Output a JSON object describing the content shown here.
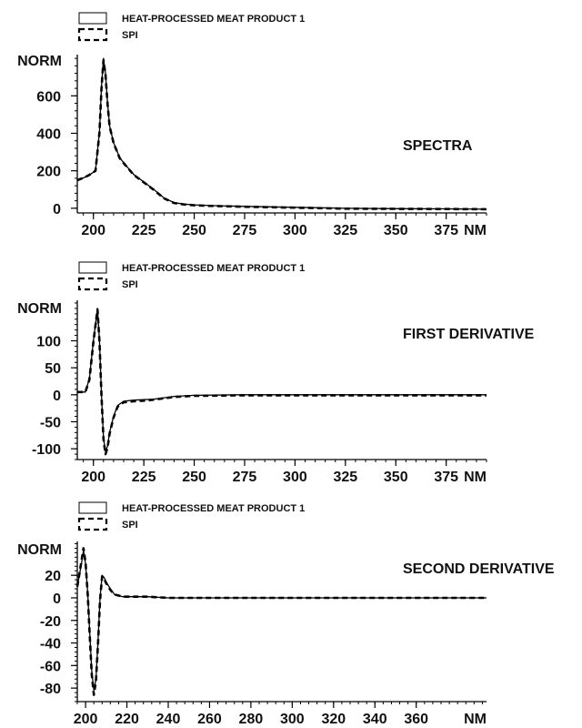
{
  "chart_data": [
    {
      "type": "line",
      "title": "SPECTRA",
      "ylabel": "NORM",
      "xunit": "NM",
      "xlim": [
        192,
        395
      ],
      "ylim": [
        -25,
        820
      ],
      "yticks": [
        0,
        200,
        400,
        600
      ],
      "xticks": [
        200,
        225,
        250,
        275,
        300,
        325,
        350,
        375
      ],
      "legend": {
        "position": "top-left",
        "entries": [
          "HEAT-PROCESSED MEAT PRODUCT 1",
          "SPI"
        ]
      },
      "series": [
        {
          "name": "HEAT-PROCESSED MEAT PRODUCT 1",
          "style": "solid",
          "x": [
            192,
            195,
            198,
            201,
            203,
            204,
            205,
            206,
            207,
            208,
            210,
            213,
            216,
            220,
            225,
            230,
            235,
            240,
            245,
            250,
            260,
            275,
            300,
            325,
            350,
            375,
            395
          ],
          "y": [
            150,
            162,
            178,
            200,
            410,
            650,
            800,
            720,
            560,
            440,
            350,
            270,
            230,
            180,
            140,
            100,
            55,
            30,
            22,
            18,
            14,
            10,
            5,
            0,
            -2,
            -3,
            -5
          ]
        },
        {
          "name": "SPI",
          "style": "dashed",
          "x": [
            192,
            195,
            198,
            201,
            203,
            204,
            205,
            206,
            207,
            208,
            210,
            213,
            216,
            220,
            225,
            230,
            235,
            240,
            245,
            250,
            260,
            275,
            300,
            325,
            350,
            375,
            395
          ],
          "y": [
            150,
            162,
            178,
            200,
            405,
            640,
            790,
            712,
            555,
            438,
            348,
            268,
            228,
            178,
            138,
            98,
            53,
            28,
            20,
            16,
            12,
            8,
            3,
            -2,
            -3,
            -4,
            -5
          ]
        }
      ]
    },
    {
      "type": "line",
      "title": "FIRST DERIVATIVE",
      "ylabel": "NORM",
      "xunit": "NM",
      "xlim": [
        192,
        395
      ],
      "ylim": [
        -120,
        175
      ],
      "yticks": [
        -100,
        -50,
        0,
        50,
        100
      ],
      "xticks": [
        200,
        225,
        250,
        275,
        300,
        325,
        350,
        375
      ],
      "legend": {
        "position": "top-left",
        "entries": [
          "HEAT-PROCESSED MEAT PRODUCT 1",
          "SPI"
        ]
      },
      "series": [
        {
          "name": "HEAT-PROCESSED MEAT PRODUCT 1",
          "style": "solid",
          "x": [
            192,
            196,
            198,
            200,
            202,
            203,
            204,
            205,
            206,
            207,
            208,
            210,
            212,
            215,
            220,
            225,
            230,
            240,
            250,
            275,
            300,
            325,
            350,
            375,
            395
          ],
          "y": [
            5,
            5,
            30,
            100,
            160,
            100,
            0,
            -80,
            -105,
            -95,
            -70,
            -40,
            -20,
            -12,
            -10,
            -9,
            -8,
            -3,
            -1,
            0,
            0,
            0,
            0,
            0,
            0
          ]
        },
        {
          "name": "SPI",
          "style": "dashed",
          "x": [
            192,
            196,
            198,
            200,
            202,
            203,
            204,
            205,
            206,
            207,
            208,
            210,
            212,
            215,
            220,
            225,
            230,
            240,
            250,
            275,
            300,
            325,
            350,
            375,
            395
          ],
          "y": [
            5,
            5,
            28,
            98,
            158,
            98,
            -2,
            -82,
            -110,
            -98,
            -72,
            -42,
            -22,
            -14,
            -12,
            -11,
            -9,
            -4,
            -2,
            -1,
            -1,
            -1,
            -1,
            -1,
            -1
          ]
        }
      ]
    },
    {
      "type": "line",
      "title": "SECOND DERIVATIVE",
      "ylabel": "NORM",
      "xunit": "NM",
      "xlim": [
        196,
        394
      ],
      "ylim": [
        -92,
        50
      ],
      "yticks": [
        -80,
        -60,
        -40,
        -20,
        0,
        20
      ],
      "xticks": [
        200,
        220,
        240,
        260,
        280,
        300,
        320,
        340,
        360
      ],
      "legend": {
        "position": "top-left",
        "entries": [
          "HEAT-PROCESSED MEAT PRODUCT 1",
          "SPI"
        ]
      },
      "series": [
        {
          "name": "HEAT-PROCESSED MEAT PRODUCT 1",
          "style": "solid",
          "x": [
            196,
            198,
            199,
            200,
            201,
            202,
            203,
            204,
            205,
            206,
            207,
            208,
            209,
            210,
            212,
            214,
            216,
            218,
            220,
            230,
            240,
            260,
            300,
            340,
            394
          ],
          "y": [
            10,
            30,
            42,
            30,
            5,
            -30,
            -65,
            -82,
            -72,
            -40,
            0,
            20,
            18,
            14,
            8,
            3,
            2,
            1,
            1,
            1,
            0,
            0,
            0,
            0,
            0
          ]
        },
        {
          "name": "SPI",
          "style": "dashed",
          "x": [
            196,
            198,
            199,
            200,
            201,
            202,
            203,
            204,
            205,
            206,
            207,
            208,
            209,
            210,
            212,
            214,
            216,
            218,
            220,
            230,
            240,
            260,
            300,
            340,
            394
          ],
          "y": [
            10,
            32,
            44,
            31,
            4,
            -32,
            -68,
            -86,
            -74,
            -42,
            -2,
            19,
            17,
            13,
            7,
            3,
            2,
            1,
            1,
            1,
            0,
            0,
            0,
            0,
            0
          ]
        }
      ]
    }
  ]
}
